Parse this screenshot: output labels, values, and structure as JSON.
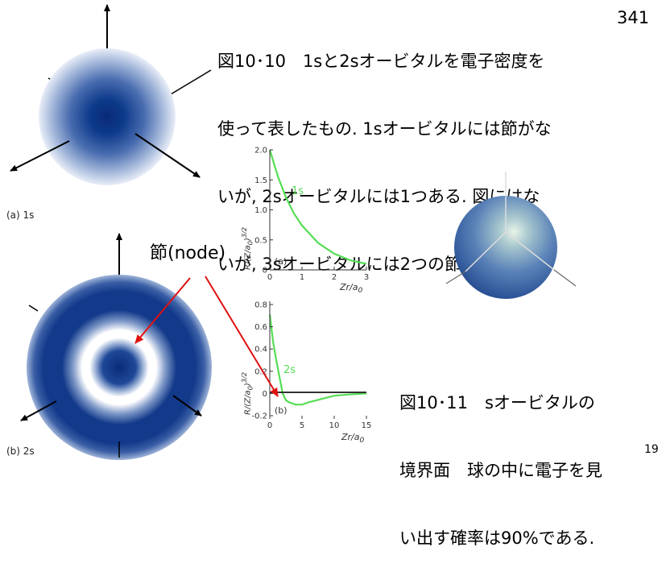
{
  "page_number_top": "341",
  "page_number_bottom": "19",
  "caption_1011": {
    "line1": "図10･10　1sと2sオービタルを電子密度を",
    "line2": "使って表したもの. 1sオービタルには節がな",
    "line3": "いが, 2sオービタルには1つある. 図にはな",
    "line4": "いが, 3sオービタルには2つの節がある."
  },
  "caption_1111": {
    "line1": "図10･11　sオービタルの",
    "line2": "境界面　球の中に電子を見",
    "line3": "い出す確率は90%である."
  },
  "label_1s": "(a) 1s",
  "label_2s": "(b) 2s",
  "node_label": "節(node)",
  "colors": {
    "orbital": "#0d2f7a",
    "curve": "#55dd55",
    "arrow": "#e01010"
  },
  "chart_data": [
    {
      "type": "line",
      "panel_label": "(a)",
      "series": [
        {
          "name": "1s",
          "x": [
            0,
            0.25,
            0.5,
            0.75,
            1,
            1.5,
            2,
            2.5,
            3
          ],
          "y": [
            2.0,
            1.56,
            1.21,
            0.94,
            0.74,
            0.45,
            0.27,
            0.16,
            0.1
          ]
        }
      ],
      "xlim": [
        0,
        3
      ],
      "ylim": [
        0,
        2
      ],
      "xticks": [
        "0",
        "1",
        "2",
        "3"
      ],
      "yticks": [
        "0",
        "0.5",
        "1.0",
        "1.5",
        "2.0"
      ],
      "xlabel": "Zr/a0",
      "ylabel": "R/(Z/a0)^3/2"
    },
    {
      "type": "line",
      "panel_label": "(b)",
      "series": [
        {
          "name": "2s",
          "x": [
            0,
            0.5,
            1,
            1.5,
            2,
            2.5,
            3,
            4,
            5,
            6,
            8,
            10,
            12,
            15
          ],
          "y": [
            0.71,
            0.47,
            0.3,
            0.15,
            0.0,
            -0.06,
            -0.08,
            -0.1,
            -0.1,
            -0.08,
            -0.05,
            -0.02,
            -0.01,
            0.0
          ]
        }
      ],
      "xlim": [
        0,
        15
      ],
      "ylim": [
        -0.2,
        0.8
      ],
      "xticks": [
        "0",
        "5",
        "10",
        "15"
      ],
      "yticks": [
        "-0.2",
        "0",
        "0.2",
        "0.4",
        "0.6",
        "0.8"
      ],
      "xlabel": "Zr/a0",
      "ylabel": "R/(Z/a0)^3/2"
    }
  ]
}
